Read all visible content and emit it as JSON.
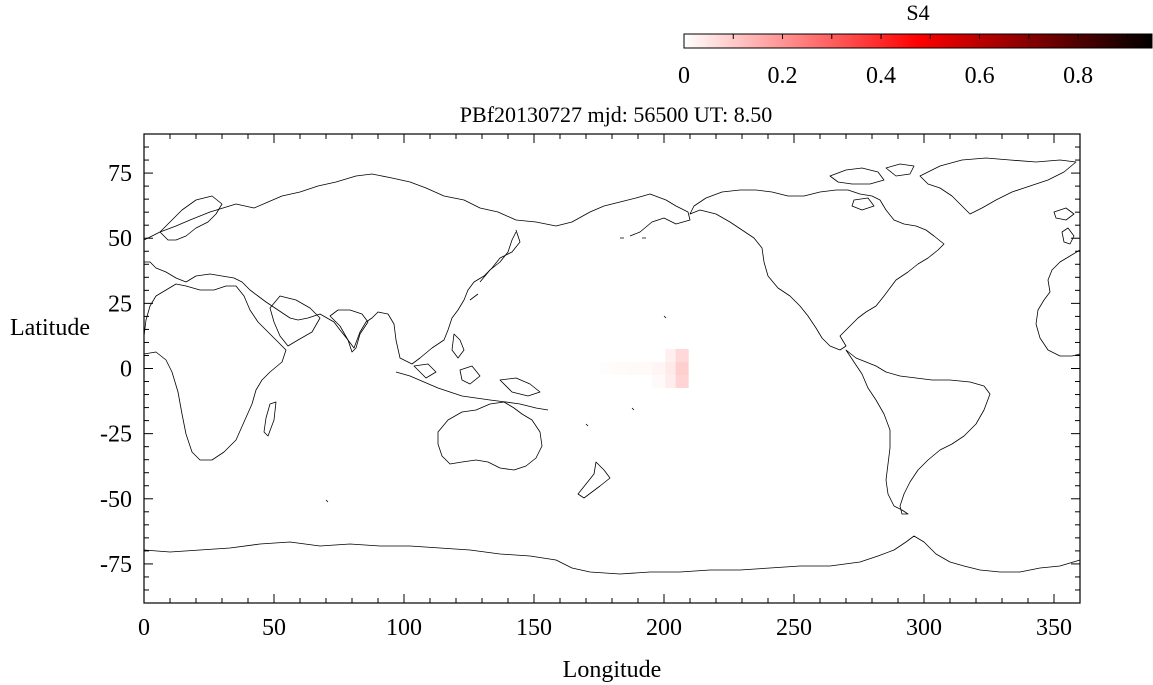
{
  "chart_data": {
    "type": "heatmap",
    "title": "PBf20130727  mjd: 56500  UT:   8.50",
    "xlabel": "Longitude",
    "ylabel": "Latitude",
    "xlim": [
      0,
      360
    ],
    "ylim": [
      -90,
      90
    ],
    "x_ticks": [
      0,
      50,
      100,
      150,
      200,
      250,
      300,
      350
    ],
    "y_ticks": [
      75,
      50,
      25,
      0,
      -25,
      -50,
      -75
    ],
    "colorbar": {
      "label": "S4",
      "range": [
        0,
        0.95
      ],
      "ticks": [
        0,
        0.2,
        0.4,
        0.6,
        0.8
      ],
      "colors": [
        "#ffffff",
        "#ff0000",
        "#000000"
      ],
      "placement": "top-right"
    },
    "cells_note_fields": [
      "lon",
      "lat",
      "s4"
    ],
    "cells": [
      {
        "lon": 178,
        "lat": 0,
        "s4": 0.005
      },
      {
        "lon": 183,
        "lat": 0,
        "s4": 0.008
      },
      {
        "lon": 188,
        "lat": 0,
        "s4": 0.01
      },
      {
        "lon": 193,
        "lat": 0,
        "s4": 0.012
      },
      {
        "lon": 198,
        "lat": 0,
        "s4": 0.018
      },
      {
        "lon": 198,
        "lat": -5,
        "s4": 0.012
      },
      {
        "lon": 203,
        "lat": 5,
        "s4": 0.03
      },
      {
        "lon": 203,
        "lat": 0,
        "s4": 0.04
      },
      {
        "lon": 203,
        "lat": -5,
        "s4": 0.035
      },
      {
        "lon": 207,
        "lat": 5,
        "s4": 0.07
      },
      {
        "lon": 207,
        "lat": 0,
        "s4": 0.09
      },
      {
        "lon": 207,
        "lat": -5,
        "s4": 0.08
      }
    ]
  }
}
